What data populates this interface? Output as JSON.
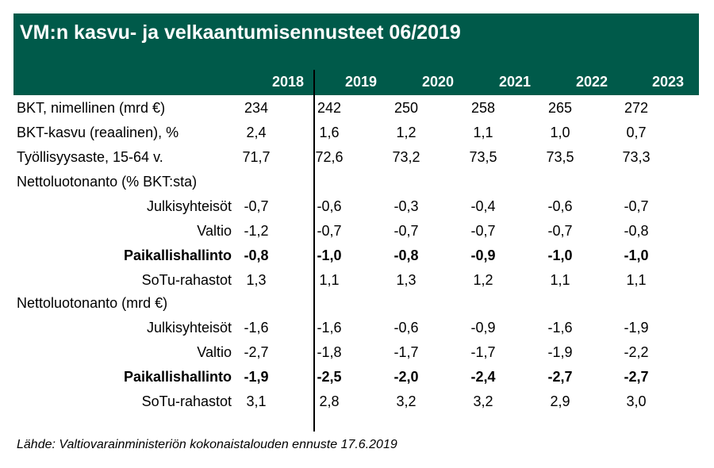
{
  "title": "VM:n kasvu- ja velkaantumisennusteet 06/2019",
  "colors": {
    "header_bg": "#005a4a",
    "header_text": "#ffffff"
  },
  "years": [
    "2018",
    "2019",
    "2020",
    "2021",
    "2022",
    "2023"
  ],
  "rows": [
    {
      "label": "BKT, nimellinen (mrd €)",
      "values": [
        "234",
        "242",
        "250",
        "258",
        "265",
        "272"
      ]
    },
    {
      "label": "BKT-kasvu (reaalinen), %",
      "values": [
        "2,4",
        "1,6",
        "1,2",
        "1,1",
        "1,0",
        "0,7"
      ]
    },
    {
      "label": "Työllisyysaste, 15-64 v.",
      "values": [
        "71,7",
        "72,6",
        "73,2",
        "73,5",
        "73,5",
        "73,3"
      ]
    },
    {
      "label": "Nettoluotonanto (% BKT:sta)",
      "values": [
        "",
        "",
        "",
        "",
        "",
        ""
      ]
    },
    {
      "label": "Julkisyhteisöt",
      "values": [
        "-0,7",
        "-0,6",
        "-0,3",
        "-0,4",
        "-0,6",
        "-0,7"
      ]
    },
    {
      "label": "Valtio",
      "values": [
        "-1,2",
        "-0,7",
        "-0,7",
        "-0,7",
        "-0,7",
        "-0,8"
      ]
    },
    {
      "label": "Paikallishallinto",
      "values": [
        "-0,8",
        "-1,0",
        "-0,8",
        "-0,9",
        "-1,0",
        "-1,0"
      ]
    },
    {
      "label": "SoTu-rahastot",
      "values": [
        "1,3",
        "1,1",
        "1,3",
        "1,2",
        "1,1",
        "1,1"
      ]
    },
    {
      "label": "Nettoluotonanto (mrd €)",
      "values": [
        "",
        "",
        "",
        "",
        "",
        ""
      ]
    },
    {
      "label": "Julkisyhteisöt",
      "values": [
        "-1,6",
        "-1,6",
        "-0,6",
        "-0,9",
        "-1,6",
        "-1,9"
      ]
    },
    {
      "label": "Valtio",
      "values": [
        "-2,7",
        "-1,8",
        "-1,7",
        "-1,7",
        "-1,9",
        "-2,2"
      ]
    },
    {
      "label": "Paikallishallinto",
      "values": [
        "-1,9",
        "-2,5",
        "-2,0",
        "-2,4",
        "-2,7",
        "-2,7"
      ]
    },
    {
      "label": "SoTu-rahastot",
      "values": [
        "3,1",
        "2,8",
        "3,2",
        "3,2",
        "2,9",
        "3,0"
      ]
    }
  ],
  "source": "Lähde: Valtiovarainministeriön kokonaistalouden ennuste 17.6.2019"
}
